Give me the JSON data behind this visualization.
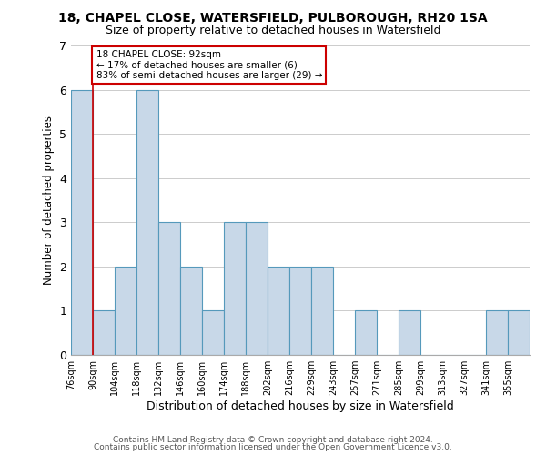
{
  "title": "18, CHAPEL CLOSE, WATERSFIELD, PULBOROUGH, RH20 1SA",
  "subtitle": "Size of property relative to detached houses in Watersfield",
  "xlabel": "Distribution of detached houses by size in Watersfield",
  "ylabel": "Number of detached properties",
  "footer_line1": "Contains HM Land Registry data © Crown copyright and database right 2024.",
  "footer_line2": "Contains public sector information licensed under the Open Government Licence v3.0.",
  "bin_labels": [
    "76sqm",
    "90sqm",
    "104sqm",
    "118sqm",
    "132sqm",
    "146sqm",
    "160sqm",
    "174sqm",
    "188sqm",
    "202sqm",
    "216sqm",
    "229sqm",
    "243sqm",
    "257sqm",
    "271sqm",
    "285sqm",
    "299sqm",
    "313sqm",
    "327sqm",
    "341sqm",
    "355sqm"
  ],
  "bar_heights": [
    6,
    1,
    2,
    6,
    3,
    2,
    1,
    3,
    3,
    2,
    2,
    2,
    0,
    1,
    0,
    1,
    0,
    0,
    0,
    1,
    1
  ],
  "bar_color": "#c8d8e8",
  "bar_edge_color": "#5599bb",
  "reference_line_x": 1,
  "reference_line_color": "#cc0000",
  "annotation_title": "18 CHAPEL CLOSE: 92sqm",
  "annotation_line1": "← 17% of detached houses are smaller (6)",
  "annotation_line2": "83% of semi-detached houses are larger (29) →",
  "annotation_box_color": "#ffffff",
  "annotation_box_edge_color": "#cc0000",
  "ylim": [
    0,
    7
  ],
  "yticks": [
    0,
    1,
    2,
    3,
    4,
    5,
    6,
    7
  ],
  "background_color": "#ffffff",
  "grid_color": "#cccccc"
}
